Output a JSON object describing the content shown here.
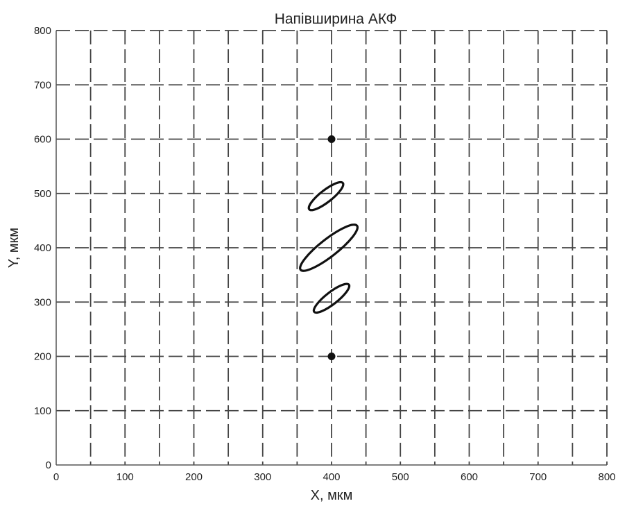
{
  "chart_data": {
    "type": "scatter",
    "title": "Напівширина АКФ",
    "xlabel": "X, мкм",
    "ylabel": "Y, мкм",
    "xlim": [
      0,
      800
    ],
    "ylim": [
      0,
      800
    ],
    "grid": true,
    "grid_style": "dashed",
    "x_ticks": [
      0,
      50,
      100,
      150,
      200,
      250,
      300,
      350,
      400,
      450,
      500,
      550,
      600,
      650,
      700,
      750,
      800
    ],
    "y_ticks": [
      0,
      100,
      200,
      300,
      400,
      500,
      600,
      700,
      800
    ],
    "x_tick_labels": [
      "0",
      "100",
      "200",
      "300",
      "400",
      "500",
      "600",
      "700",
      "800"
    ],
    "y_tick_labels": [
      "0",
      "100",
      "200",
      "300",
      "400",
      "500",
      "600",
      "700",
      "800"
    ],
    "points": [
      {
        "x": 400,
        "y": 600
      },
      {
        "x": 400,
        "y": 200
      }
    ],
    "ellipses": [
      {
        "cx": 392,
        "cy": 495,
        "semi_major": 31,
        "semi_minor": 11,
        "angle_deg": 38
      },
      {
        "cx": 396,
        "cy": 400,
        "semi_major": 52,
        "semi_minor": 16,
        "angle_deg": 38
      },
      {
        "cx": 400,
        "cy": 307,
        "semi_major": 32,
        "semi_minor": 11,
        "angle_deg": 38
      }
    ],
    "colors": {
      "grid": "#444444",
      "frame": "#555555",
      "marks": "#111111"
    }
  }
}
